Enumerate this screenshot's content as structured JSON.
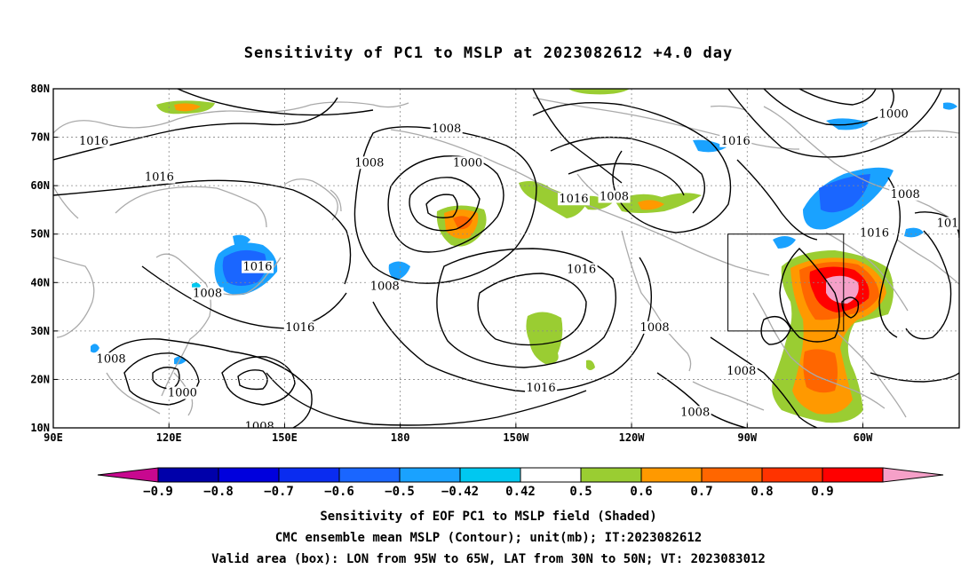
{
  "title": "Sensitivity of PC1 to MSLP at 2023082612 +4.0 day",
  "map": {
    "lon_labels": [
      "90E",
      "120E",
      "150E",
      "180",
      "150W",
      "120W",
      "90W",
      "60W"
    ],
    "lon_values": [
      90,
      120,
      150,
      180,
      210,
      240,
      270,
      300
    ],
    "lat_labels": [
      "80N",
      "70N",
      "60N",
      "50N",
      "40N",
      "30N",
      "20N",
      "10N"
    ],
    "lat_values": [
      80,
      70,
      60,
      50,
      40,
      30,
      20,
      10
    ],
    "lon_range": [
      90,
      325
    ],
    "lat_range": [
      10,
      80
    ],
    "valid_box": {
      "lon_min": 265,
      "lon_max": 295,
      "lat_min": 30,
      "lat_max": 50
    },
    "contour_labels": [
      {
        "text": "1016",
        "lon": 100.5,
        "lat": 68.5
      },
      {
        "text": "1016",
        "lon": 117.5,
        "lat": 61.0
      },
      {
        "text": "1008",
        "lon": 172.0,
        "lat": 64.0
      },
      {
        "text": "1008",
        "lon": 192.0,
        "lat": 71.0
      },
      {
        "text": "1000",
        "lon": 197.5,
        "lat": 64.0
      },
      {
        "text": "1016",
        "lon": 267.0,
        "lat": 68.5
      },
      {
        "text": "1000",
        "lon": 308.0,
        "lat": 74.0
      },
      {
        "text": "1016",
        "lon": 225.0,
        "lat": 56.5
      },
      {
        "text": "1008",
        "lon": 235.5,
        "lat": 57.0
      },
      {
        "text": "1008",
        "lon": 311.0,
        "lat": 57.5
      },
      {
        "text": "1016",
        "lon": 303.0,
        "lat": 49.5
      },
      {
        "text": "101",
        "lon": 322.0,
        "lat": 51.5
      },
      {
        "text": "1016",
        "lon": 227.0,
        "lat": 42.0
      },
      {
        "text": "1016",
        "lon": 143.0,
        "lat": 42.5
      },
      {
        "text": "1008",
        "lon": 130.0,
        "lat": 37.0
      },
      {
        "text": "1008",
        "lon": 176.0,
        "lat": 38.5
      },
      {
        "text": "1016",
        "lon": 154.0,
        "lat": 30.0
      },
      {
        "text": "1008",
        "lon": 105.0,
        "lat": 23.5
      },
      {
        "text": "1000",
        "lon": 123.5,
        "lat": 16.5
      },
      {
        "text": "1008",
        "lon": 143.5,
        "lat": 9.5
      },
      {
        "text": "1016",
        "lon": 216.5,
        "lat": 17.5
      },
      {
        "text": "1008",
        "lon": 246.0,
        "lat": 30.0
      },
      {
        "text": "1008",
        "lon": 256.5,
        "lat": 12.5
      },
      {
        "text": "1008",
        "lon": 268.5,
        "lat": 21.0
      }
    ]
  },
  "colorbar": {
    "labels": [
      "-0.9",
      "-0.8",
      "-0.7",
      "-0.6",
      "-0.5",
      "-0.42",
      "0.42",
      "0.5",
      "0.6",
      "0.7",
      "0.8",
      "0.9"
    ],
    "colors": [
      "#0000aa",
      "#0000dd",
      "#0a2cf0",
      "#1a66ff",
      "#1aa2ff",
      "#00c8f0",
      "#ffffff",
      "#9acd32",
      "#ff9900",
      "#ff6600",
      "#ff3300",
      "#ff0000"
    ],
    "low_color": "#c8088f",
    "high_color": "#f5a0c8"
  },
  "captions": [
    "Sensitivity of EOF PC1 to MSLP field (Shaded)",
    "CMC ensemble mean MSLP (Contour); unit(mb); IT:2023082612",
    "Valid area (box): LON from 95W to 65W, LAT from 30N to 50N; VT: 2023083012"
  ]
}
